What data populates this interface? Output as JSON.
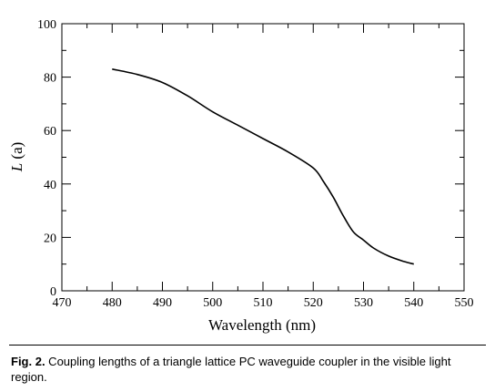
{
  "chart_data": {
    "type": "line",
    "title": "",
    "xlabel": "Wavelength (nm)",
    "ylabel": "L (a)",
    "ylabel_italic": "L",
    "ylabel_rest": " (a)",
    "xlim": [
      470,
      550
    ],
    "ylim": [
      0,
      100
    ],
    "xticks": [
      470,
      480,
      490,
      500,
      510,
      520,
      530,
      540,
      550
    ],
    "yticks": [
      0,
      20,
      40,
      60,
      80,
      100
    ],
    "grid": false,
    "series": [
      {
        "x": [
          480,
          485,
          490,
          495,
          500,
          505,
          510,
          515,
          520,
          522,
          524,
          526,
          528,
          530,
          532,
          535,
          538,
          540
        ],
        "y": [
          83,
          81,
          78,
          73,
          67,
          62,
          57,
          52,
          46,
          41,
          35,
          28,
          22,
          19,
          16,
          13,
          11,
          10
        ]
      }
    ]
  },
  "caption": {
    "lead": "Fig. 2.",
    "text": " Coupling lengths of a triangle lattice PC waveguide coupler in the visible light region."
  }
}
